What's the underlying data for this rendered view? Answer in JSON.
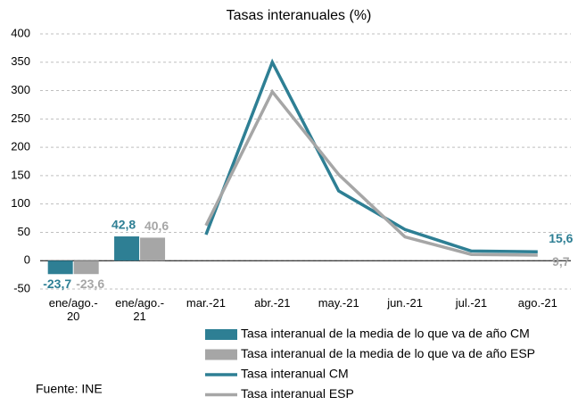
{
  "chart_data": {
    "type": "bar_line",
    "title": "Tasas interanuales (%)",
    "categories": [
      "ene/ago.-\n20",
      "ene/ago.-\n21",
      "mar.-21",
      "abr.-21",
      "may.-21",
      "jun.-21",
      "jul.-21",
      "ago.-21"
    ],
    "series": [
      {
        "name": "Tasa interanual de la media de lo que va de año CM",
        "type": "bar",
        "color": "#2e7f94",
        "values": [
          -23.7,
          42.8,
          null,
          null,
          null,
          null,
          null,
          null
        ],
        "value_labels": [
          "-23,7",
          "42,8",
          null,
          null,
          null,
          null,
          null,
          null
        ]
      },
      {
        "name": "Tasa interanual de la media de lo que va de año ESP",
        "type": "bar",
        "color": "#a6a6a6",
        "values": [
          -23.6,
          40.6,
          null,
          null,
          null,
          null,
          null,
          null
        ],
        "value_labels": [
          "-23,6",
          "40,6",
          null,
          null,
          null,
          null,
          null,
          null
        ]
      },
      {
        "name": "Tasa interanual CM",
        "type": "line",
        "color": "#2e7f94",
        "values": [
          null,
          null,
          46,
          350,
          123,
          55,
          17,
          15.6
        ],
        "value_labels": [
          null,
          null,
          null,
          null,
          null,
          null,
          null,
          "15,6"
        ]
      },
      {
        "name": "Tasa interanual ESP",
        "type": "line",
        "color": "#a6a6a6",
        "values": [
          null,
          null,
          62,
          298,
          152,
          42,
          11,
          9.7
        ],
        "value_labels": [
          null,
          null,
          null,
          null,
          null,
          null,
          null,
          "9,7"
        ]
      }
    ],
    "ylim": [
      -50,
      400
    ],
    "yticks": [
      -50,
      0,
      50,
      100,
      150,
      200,
      250,
      300,
      350,
      400
    ],
    "grid": true,
    "source": "Fuente: INE"
  }
}
